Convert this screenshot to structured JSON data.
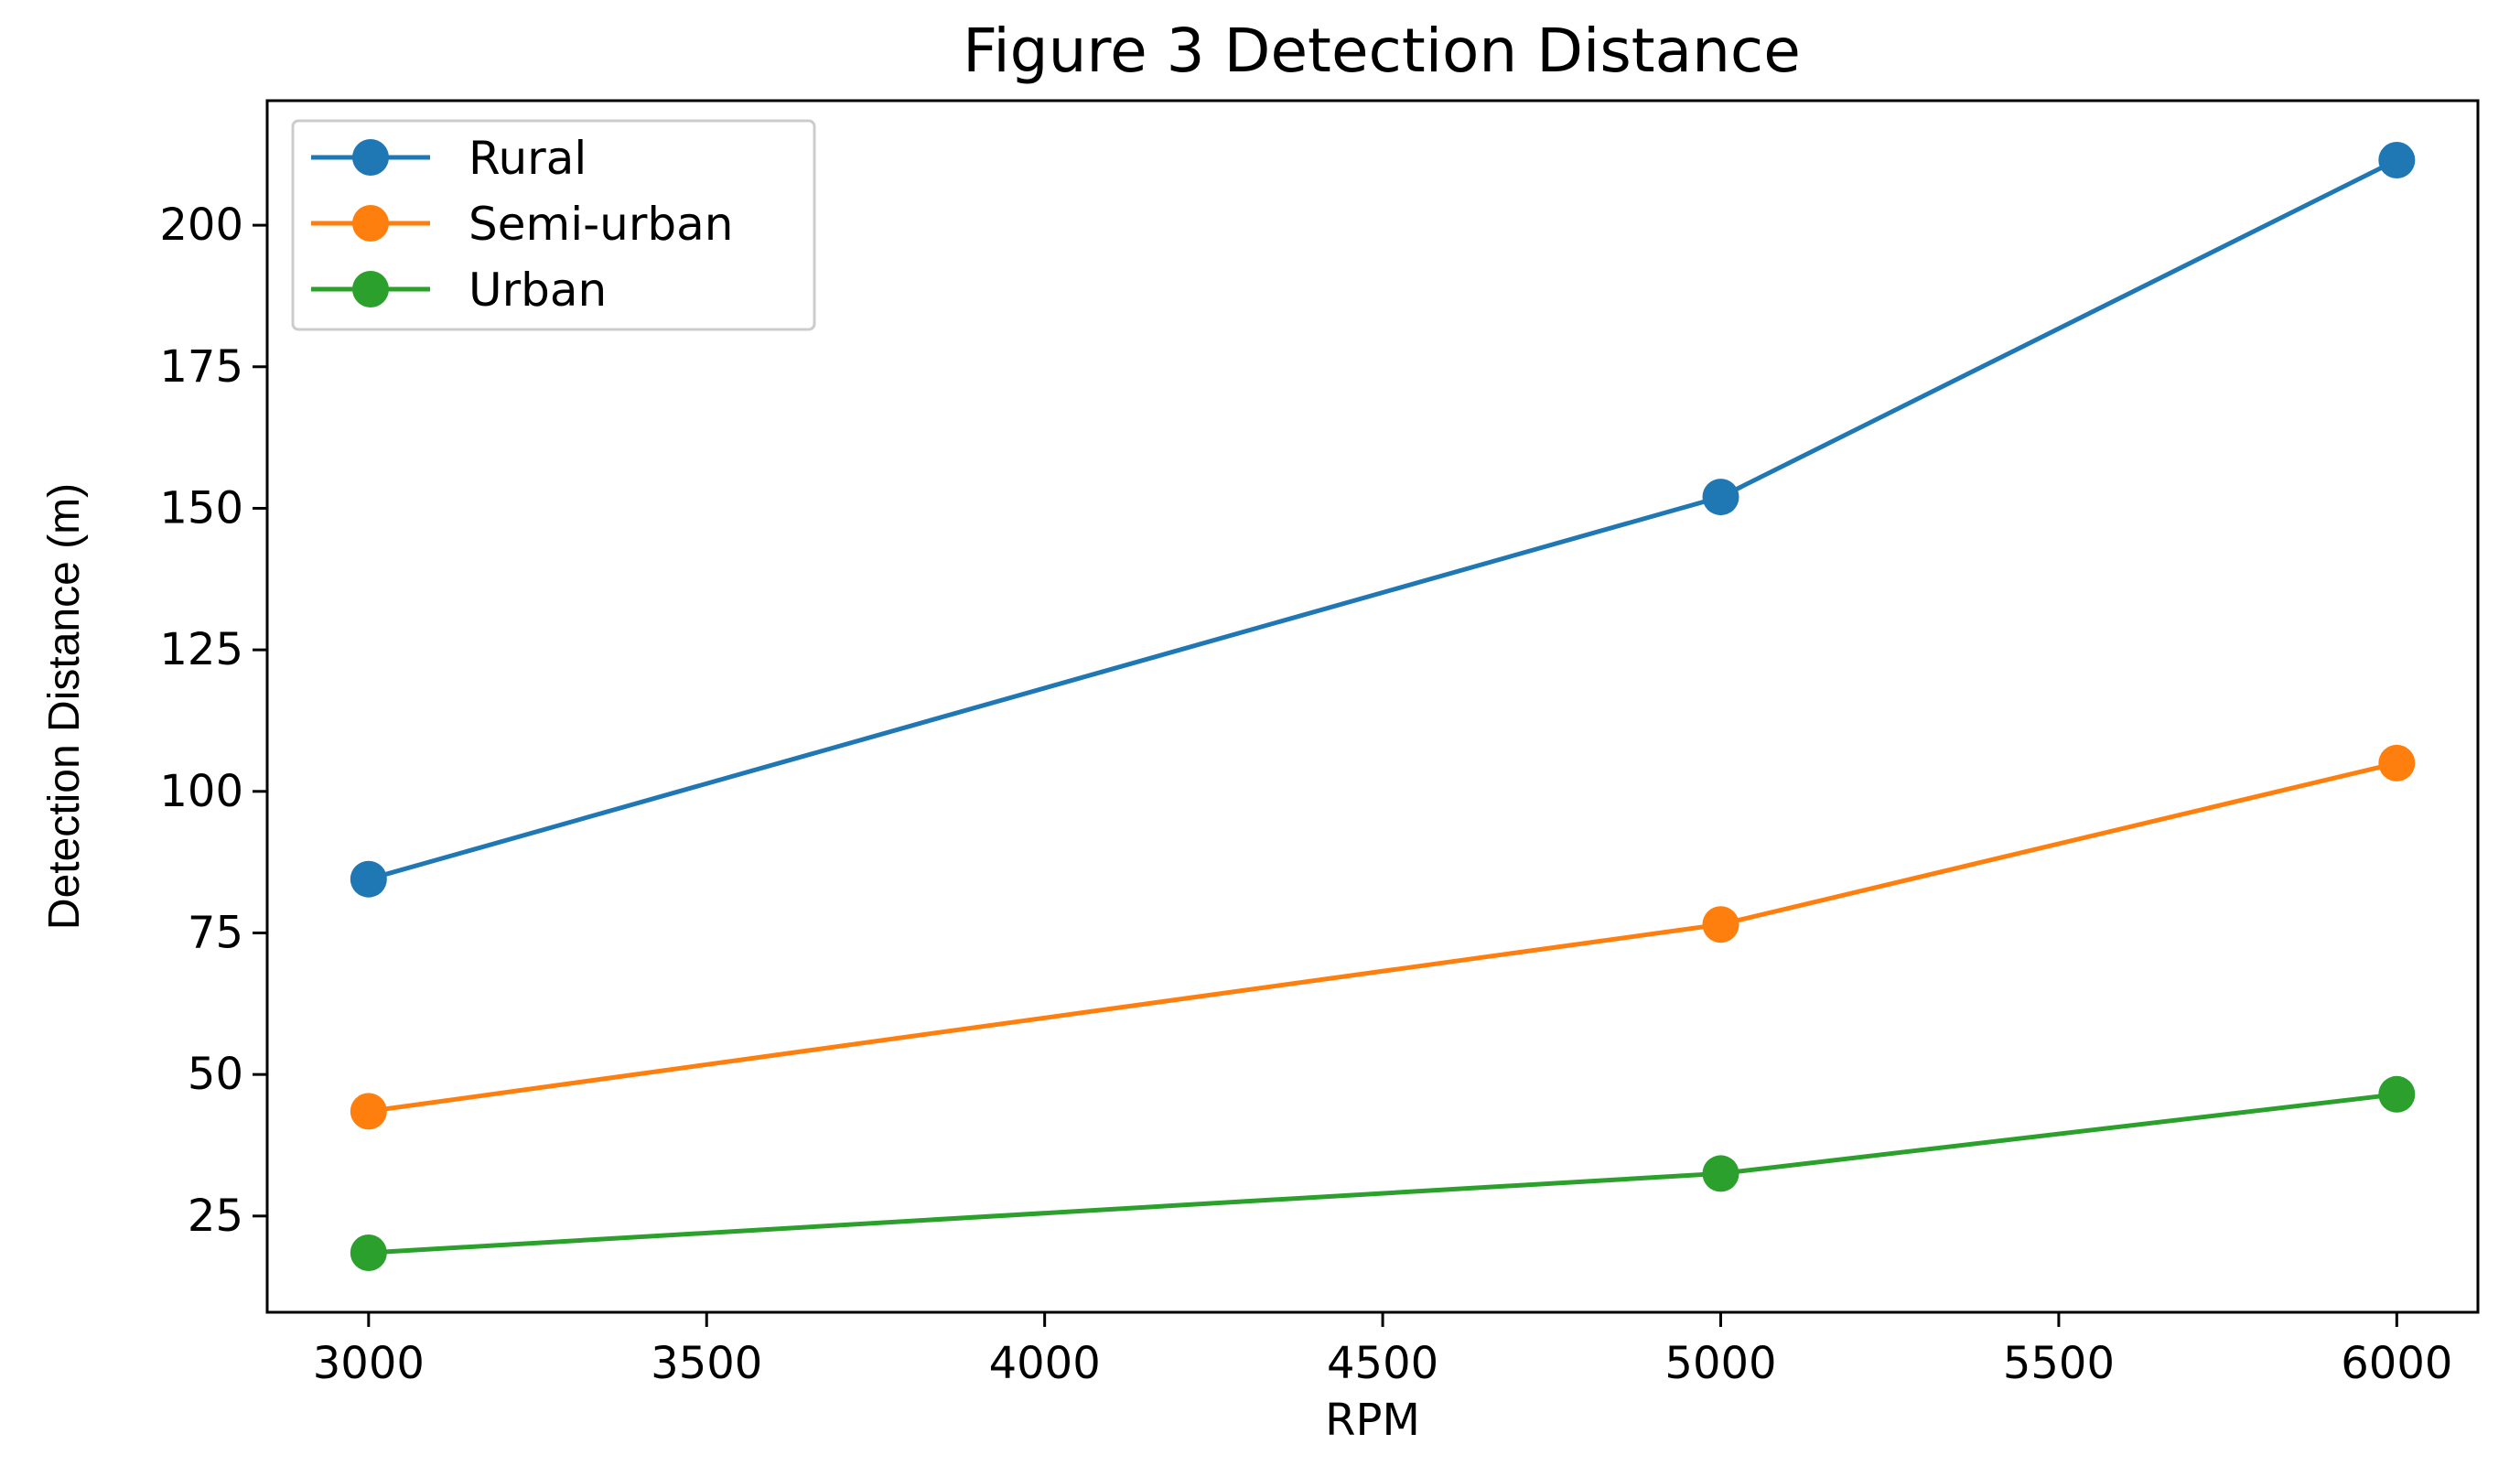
{
  "chart_data": {
    "type": "line",
    "title": "Figure 3 Detection Distance",
    "xlabel": "RPM",
    "ylabel": "Detection Distance (m)",
    "x": [
      3000,
      5000,
      6000
    ],
    "xlim": [
      2850,
      6120
    ],
    "ylim": [
      8,
      222
    ],
    "x_ticks": [
      "3000",
      "3500",
      "4000",
      "4500",
      "5000",
      "5500",
      "6000"
    ],
    "y_ticks": [
      "25",
      "50",
      "75",
      "100",
      "125",
      "150",
      "175",
      "200"
    ],
    "grid": false,
    "legend_position": "top-left",
    "marker": "circle",
    "series": [
      {
        "name": "Rural",
        "color": "#1f77b4",
        "values": [
          84.5,
          152,
          211.5
        ]
      },
      {
        "name": "Semi-urban",
        "color": "#ff7f0e",
        "values": [
          43.5,
          76.5,
          105
        ]
      },
      {
        "name": "Urban",
        "color": "#2ca02c",
        "values": [
          18.5,
          32.5,
          46.5
        ]
      }
    ]
  }
}
